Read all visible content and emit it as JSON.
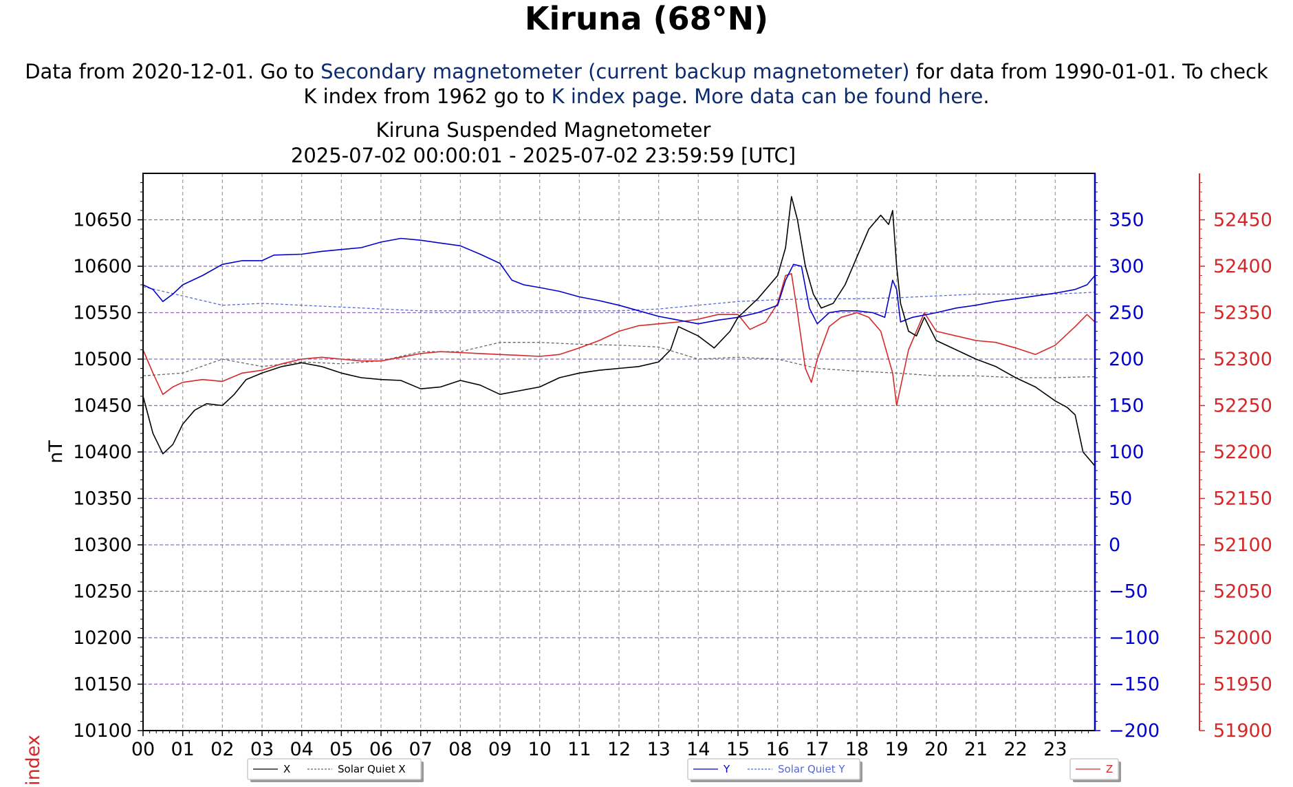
{
  "page": {
    "title": "Kiruna (68°N)",
    "intro": {
      "t1": "Data from 2020-12-01. Go to ",
      "link_secondary": "Secondary magnetometer (current backup magnetometer)",
      "t2": " for data from 1990-01-01. To check",
      "t3": "K index from 1962 go to ",
      "link_kindex": "K index page",
      "t4": ". ",
      "link_more": "More data can be found here",
      "t5": "."
    },
    "corner_label": "index"
  },
  "colors": {
    "x": "#000000",
    "y": "#0000cc",
    "z": "#d62728",
    "link": "#0b2a6f"
  },
  "chart_data": {
    "type": "line",
    "title": "Kiruna Suspended Magnetometer",
    "subtitle": "2025-07-02 00:00:01 - 2025-07-02 23:59:59 [UTC]",
    "x_ticks": [
      "00",
      "01",
      "02",
      "03",
      "04",
      "05",
      "06",
      "07",
      "08",
      "09",
      "10",
      "11",
      "12",
      "13",
      "14",
      "15",
      "16",
      "17",
      "18",
      "19",
      "20",
      "21",
      "22",
      "23"
    ],
    "xlim": [
      0,
      24
    ],
    "grid": true,
    "axes": {
      "left": {
        "label": "nT",
        "ylim": [
          10100,
          10700
        ],
        "ticks": [
          10100,
          10150,
          10200,
          10250,
          10300,
          10350,
          10400,
          10450,
          10500,
          10550,
          10600,
          10650
        ],
        "color": "#000000"
      },
      "right1": {
        "label": "",
        "ylim": [
          -200,
          400
        ],
        "ticks": [
          "−200",
          "−150",
          "−100",
          "−50",
          "0",
          "50",
          "100",
          "150",
          "200",
          "250",
          "300",
          "350"
        ],
        "color": "#0000cc"
      },
      "right2": {
        "label": "",
        "ylim": [
          51900,
          52500
        ],
        "ticks": [
          51900,
          51950,
          52000,
          52050,
          52100,
          52150,
          52200,
          52250,
          52300,
          52350,
          52400,
          52450
        ],
        "color": "#d62728"
      }
    },
    "series": [
      {
        "name": "X",
        "axis": "left",
        "color": "#000000",
        "style": "solid",
        "points": [
          [
            0,
            10460
          ],
          [
            0.25,
            10420
          ],
          [
            0.5,
            10398
          ],
          [
            0.75,
            10408
          ],
          [
            1,
            10430
          ],
          [
            1.3,
            10445
          ],
          [
            1.6,
            10452
          ],
          [
            2,
            10450
          ],
          [
            2.3,
            10462
          ],
          [
            2.6,
            10478
          ],
          [
            3,
            10485
          ],
          [
            3.5,
            10492
          ],
          [
            4,
            10496
          ],
          [
            4.5,
            10492
          ],
          [
            5,
            10485
          ],
          [
            5.5,
            10480
          ],
          [
            6,
            10478
          ],
          [
            6.5,
            10477
          ],
          [
            7,
            10468
          ],
          [
            7.5,
            10470
          ],
          [
            8,
            10477
          ],
          [
            8.5,
            10472
          ],
          [
            9,
            10462
          ],
          [
            9.5,
            10466
          ],
          [
            10,
            10470
          ],
          [
            10.5,
            10480
          ],
          [
            11,
            10485
          ],
          [
            11.5,
            10488
          ],
          [
            12,
            10490
          ],
          [
            12.5,
            10492
          ],
          [
            13,
            10497
          ],
          [
            13.3,
            10510
          ],
          [
            13.5,
            10535
          ],
          [
            14,
            10525
          ],
          [
            14.4,
            10512
          ],
          [
            14.8,
            10530
          ],
          [
            15,
            10545
          ],
          [
            15.5,
            10565
          ],
          [
            16,
            10590
          ],
          [
            16.2,
            10620
          ],
          [
            16.35,
            10675
          ],
          [
            16.5,
            10650
          ],
          [
            16.7,
            10600
          ],
          [
            16.9,
            10570
          ],
          [
            17.1,
            10555
          ],
          [
            17.4,
            10560
          ],
          [
            17.7,
            10580
          ],
          [
            18,
            10610
          ],
          [
            18.3,
            10640
          ],
          [
            18.6,
            10655
          ],
          [
            18.8,
            10645
          ],
          [
            18.9,
            10660
          ],
          [
            19.0,
            10600
          ],
          [
            19.1,
            10560
          ],
          [
            19.3,
            10530
          ],
          [
            19.5,
            10525
          ],
          [
            19.7,
            10545
          ],
          [
            20,
            10520
          ],
          [
            20.5,
            10510
          ],
          [
            21,
            10500
          ],
          [
            21.5,
            10492
          ],
          [
            22,
            10480
          ],
          [
            22.5,
            10470
          ],
          [
            23,
            10455
          ],
          [
            23.3,
            10448
          ],
          [
            23.5,
            10440
          ],
          [
            23.7,
            10400
          ],
          [
            24,
            10385
          ]
        ]
      },
      {
        "name": "Solar Quiet X",
        "axis": "left",
        "color": "#666666",
        "style": "dashed",
        "points": [
          [
            0,
            10482
          ],
          [
            1,
            10485
          ],
          [
            2,
            10500
          ],
          [
            3,
            10492
          ],
          [
            4,
            10497
          ],
          [
            5,
            10495
          ],
          [
            6,
            10498
          ],
          [
            7,
            10508
          ],
          [
            8,
            10508
          ],
          [
            9,
            10518
          ],
          [
            10,
            10518
          ],
          [
            11,
            10516
          ],
          [
            12,
            10515
          ],
          [
            13,
            10513
          ],
          [
            14,
            10500
          ],
          [
            15,
            10502
          ],
          [
            16,
            10500
          ],
          [
            17,
            10490
          ],
          [
            18,
            10487
          ],
          [
            19,
            10485
          ],
          [
            20,
            10482
          ],
          [
            21,
            10482
          ],
          [
            22,
            10480
          ],
          [
            23,
            10480
          ],
          [
            24,
            10481
          ]
        ]
      },
      {
        "name": "Y",
        "axis": "right1",
        "color": "#0000cc",
        "style": "solid",
        "points": [
          [
            0,
            280
          ],
          [
            0.25,
            275
          ],
          [
            0.5,
            262
          ],
          [
            0.75,
            270
          ],
          [
            1,
            280
          ],
          [
            1.5,
            290
          ],
          [
            2,
            302
          ],
          [
            2.5,
            306
          ],
          [
            3,
            306
          ],
          [
            3.3,
            312
          ],
          [
            4,
            313
          ],
          [
            4.5,
            316
          ],
          [
            5,
            318
          ],
          [
            5.5,
            320
          ],
          [
            6,
            326
          ],
          [
            6.5,
            330
          ],
          [
            7,
            328
          ],
          [
            7.5,
            325
          ],
          [
            8,
            322
          ],
          [
            8.5,
            313
          ],
          [
            9,
            303
          ],
          [
            9.3,
            285
          ],
          [
            9.6,
            280
          ],
          [
            10,
            277
          ],
          [
            10.5,
            273
          ],
          [
            11,
            267
          ],
          [
            11.5,
            263
          ],
          [
            12,
            258
          ],
          [
            12.5,
            252
          ],
          [
            13,
            246
          ],
          [
            13.5,
            242
          ],
          [
            14,
            238
          ],
          [
            14.5,
            242
          ],
          [
            15,
            245
          ],
          [
            15.5,
            250
          ],
          [
            16,
            258
          ],
          [
            16.2,
            285
          ],
          [
            16.4,
            302
          ],
          [
            16.6,
            300
          ],
          [
            16.8,
            255
          ],
          [
            17,
            238
          ],
          [
            17.3,
            250
          ],
          [
            17.6,
            252
          ],
          [
            18,
            252
          ],
          [
            18.4,
            250
          ],
          [
            18.7,
            245
          ],
          [
            18.9,
            285
          ],
          [
            19.0,
            275
          ],
          [
            19.1,
            240
          ],
          [
            19.4,
            245
          ],
          [
            20,
            250
          ],
          [
            20.5,
            255
          ],
          [
            21,
            258
          ],
          [
            21.5,
            262
          ],
          [
            22,
            265
          ],
          [
            22.5,
            268
          ],
          [
            23,
            271
          ],
          [
            23.5,
            275
          ],
          [
            23.8,
            280
          ],
          [
            24,
            290
          ]
        ]
      },
      {
        "name": "Solar Quiet Y",
        "axis": "right1",
        "color": "#5566dd",
        "style": "dashed",
        "points": [
          [
            0,
            278
          ],
          [
            1,
            268
          ],
          [
            2,
            258
          ],
          [
            3,
            260
          ],
          [
            4,
            258
          ],
          [
            5,
            256
          ],
          [
            6,
            254
          ],
          [
            7,
            252
          ],
          [
            8,
            252
          ],
          [
            9,
            252
          ],
          [
            10,
            252
          ],
          [
            11,
            252
          ],
          [
            12,
            252
          ],
          [
            13,
            254
          ],
          [
            14,
            258
          ],
          [
            15,
            262
          ],
          [
            16,
            264
          ],
          [
            17,
            265
          ],
          [
            18,
            265
          ],
          [
            19,
            266
          ],
          [
            20,
            268
          ],
          [
            21,
            270
          ],
          [
            22,
            270
          ],
          [
            23,
            270
          ],
          [
            24,
            272
          ]
        ]
      },
      {
        "name": "Z",
        "axis": "right2",
        "color": "#d62728",
        "style": "solid",
        "points": [
          [
            0,
            52310
          ],
          [
            0.25,
            52285
          ],
          [
            0.5,
            52262
          ],
          [
            0.75,
            52270
          ],
          [
            1,
            52275
          ],
          [
            1.5,
            52278
          ],
          [
            2,
            52276
          ],
          [
            2.5,
            52285
          ],
          [
            3,
            52288
          ],
          [
            3.5,
            52295
          ],
          [
            4,
            52300
          ],
          [
            4.5,
            52302
          ],
          [
            5,
            52300
          ],
          [
            5.5,
            52298
          ],
          [
            6,
            52298
          ],
          [
            6.5,
            52302
          ],
          [
            7,
            52306
          ],
          [
            7.5,
            52308
          ],
          [
            8,
            52307
          ],
          [
            8.5,
            52306
          ],
          [
            9,
            52305
          ],
          [
            9.5,
            52304
          ],
          [
            10,
            52303
          ],
          [
            10.5,
            52305
          ],
          [
            11,
            52312
          ],
          [
            11.5,
            52320
          ],
          [
            12,
            52330
          ],
          [
            12.5,
            52336
          ],
          [
            13,
            52338
          ],
          [
            13.5,
            52340
          ],
          [
            14,
            52343
          ],
          [
            14.5,
            52348
          ],
          [
            15,
            52348
          ],
          [
            15.3,
            52332
          ],
          [
            15.7,
            52340
          ],
          [
            16,
            52360
          ],
          [
            16.2,
            52390
          ],
          [
            16.35,
            52392
          ],
          [
            16.5,
            52350
          ],
          [
            16.7,
            52290
          ],
          [
            16.85,
            52275
          ],
          [
            17,
            52300
          ],
          [
            17.3,
            52335
          ],
          [
            17.6,
            52345
          ],
          [
            18,
            52350
          ],
          [
            18.3,
            52345
          ],
          [
            18.6,
            52330
          ],
          [
            18.8,
            52300
          ],
          [
            18.9,
            52285
          ],
          [
            19.0,
            52250
          ],
          [
            19.1,
            52270
          ],
          [
            19.3,
            52310
          ],
          [
            19.5,
            52330
          ],
          [
            19.7,
            52350
          ],
          [
            20,
            52330
          ],
          [
            20.5,
            52325
          ],
          [
            21,
            52320
          ],
          [
            21.5,
            52318
          ],
          [
            22,
            52312
          ],
          [
            22.5,
            52305
          ],
          [
            23,
            52315
          ],
          [
            23.5,
            52335
          ],
          [
            23.8,
            52348
          ],
          [
            24,
            52340
          ]
        ]
      }
    ],
    "legends": [
      {
        "entries": [
          {
            "label": "X",
            "color": "#000000",
            "style": "solid"
          },
          {
            "label": "Solar Quiet X",
            "color": "#666666",
            "style": "dashed"
          }
        ]
      },
      {
        "entries": [
          {
            "label": "Y",
            "color": "#0000cc",
            "style": "solid"
          },
          {
            "label": "Solar Quiet Y",
            "color": "#5566dd",
            "style": "dashed"
          }
        ]
      },
      {
        "entries": [
          {
            "label": "Z",
            "color": "#d62728",
            "style": "solid"
          }
        ]
      }
    ]
  }
}
